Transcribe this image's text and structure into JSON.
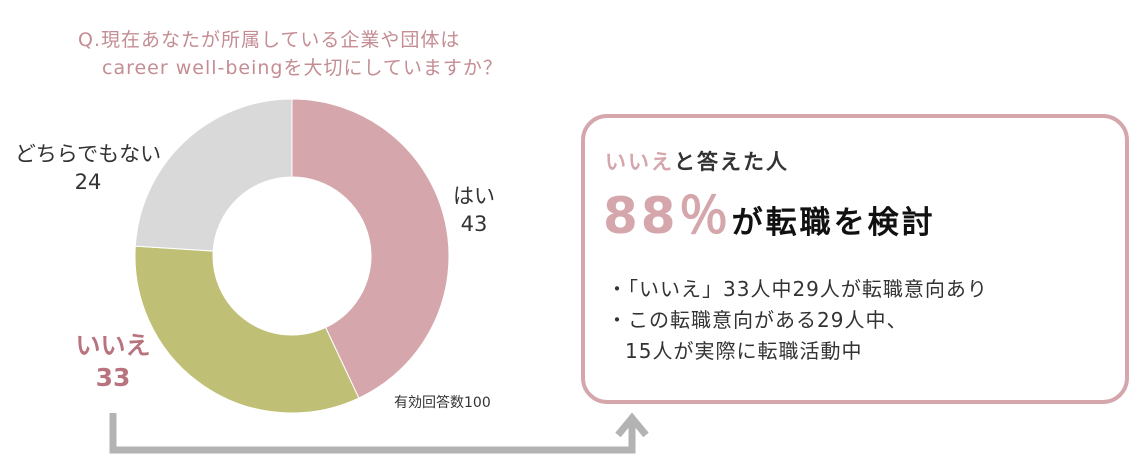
{
  "question": {
    "line1": "Q.現在あなたが所属している企業や団体は",
    "line2": "career well-beingを大切にしていますか？"
  },
  "chart_data": {
    "type": "pie",
    "donut": true,
    "slices": [
      {
        "label": "はい",
        "value": 43,
        "color": "#d5a7ac"
      },
      {
        "label": "いいえ",
        "value": 33,
        "color": "#bfc076"
      },
      {
        "label": "どちらでもない",
        "value": 24,
        "color": "#d9d9d9"
      }
    ],
    "note": "有効回答数100"
  },
  "callout": {
    "sub_highlight": "いいえ",
    "sub_rest": "と答えた人",
    "percent": "88％",
    "headline_rest": "が転職を検討",
    "bullet1": "・「いいえ」33人中29人が転職意向あり",
    "bullet2a": "・この転職意向がある29人中、",
    "bullet2b": "15人が実際に転職活動中"
  },
  "colors": {
    "question": "#c48d93",
    "accent": "#d5a7ac",
    "iie_label": "#b8737e",
    "arrow": "#b3b3b3"
  }
}
